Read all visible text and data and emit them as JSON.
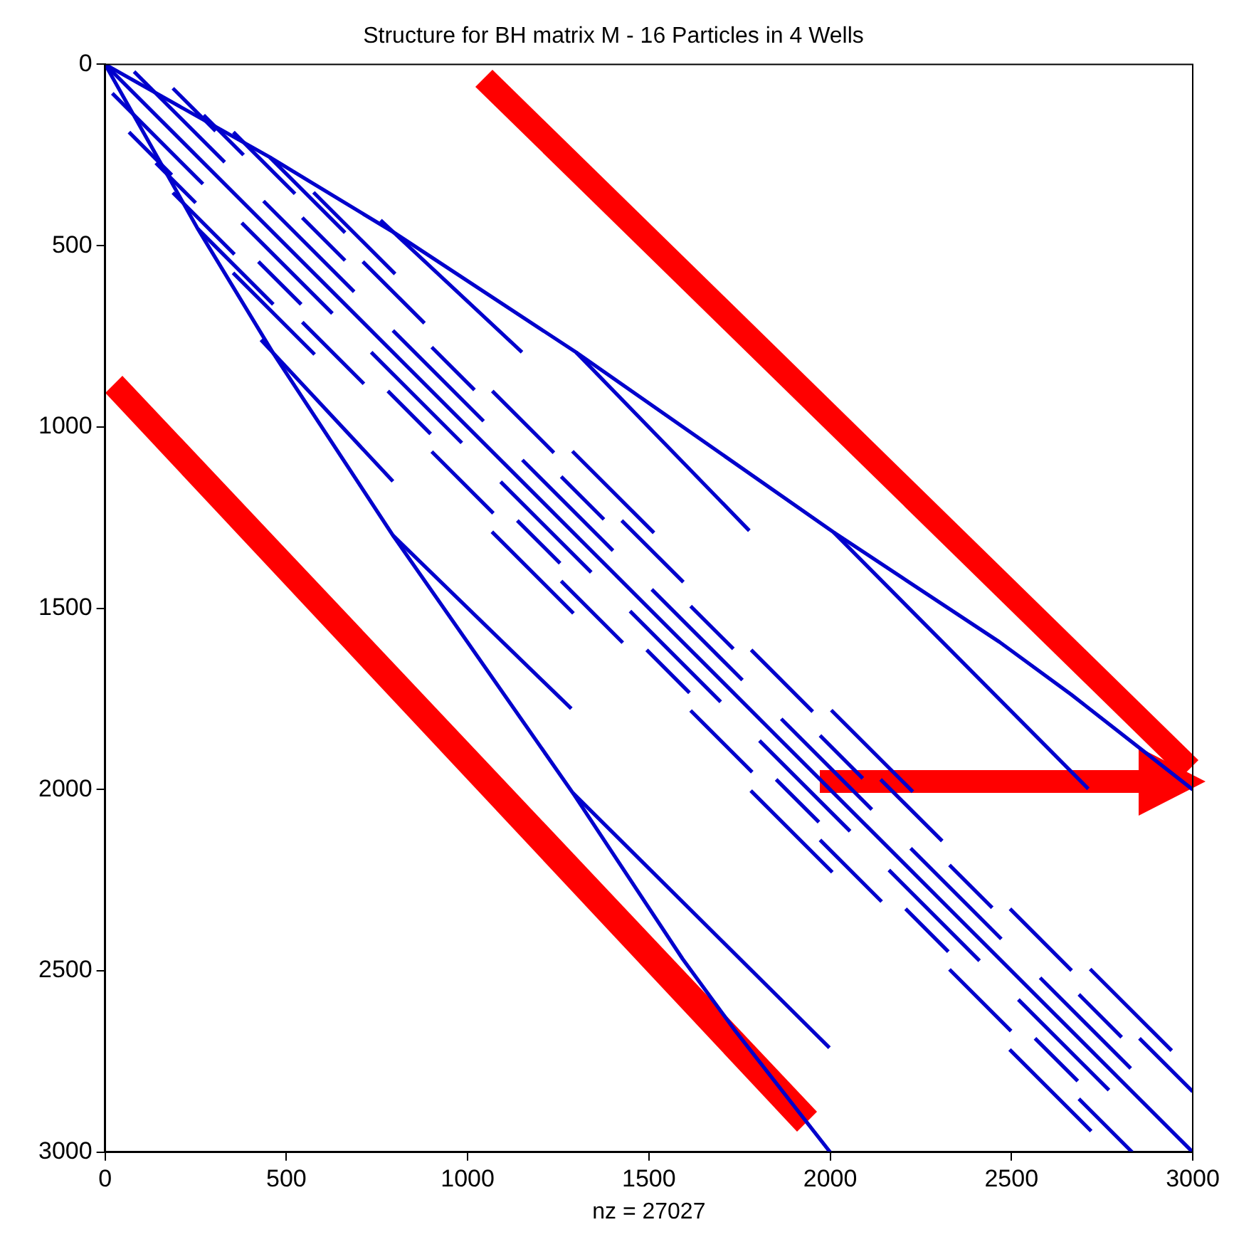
{
  "chart_data": {
    "type": "line",
    "title": "Structure for BH matrix M - 16 Particles in 4 Wells",
    "xlabel": "nz = 27027",
    "xlim": [
      0,
      3000
    ],
    "xticks": [
      0,
      500,
      1000,
      1500,
      2000,
      2500,
      3000
    ],
    "ylim": [
      3000,
      0
    ],
    "yticks": [
      0,
      500,
      1000,
      1500,
      2000,
      2500,
      3000
    ],
    "grid": false,
    "legend": false,
    "marker": "none",
    "line_style": "solid",
    "series": [
      {
        "color": "#0000cc",
        "x": [
          0,
          3000
        ],
        "values": [
          0,
          3000
        ]
      },
      {
        "color": "#0000cc",
        "x": [
          0,
          256,
          464,
          794,
          1290,
          1593,
          1738,
          2000
        ],
        "values": [
          0,
          454,
          797,
          1299,
          2009,
          2467,
          2665,
          3000
        ]
      },
      {
        "color": "#0000cc",
        "x": [
          0,
          454,
          797,
          1299,
          2009,
          2467,
          2665,
          3000
        ],
        "values": [
          0,
          256,
          464,
          794,
          1290,
          1593,
          1738,
          2000
        ]
      },
      {
        "color": "#0000cc",
        "x": [
          140,
          250,
          null,
          256,
          464,
          null,
          430,
          794,
          null,
          794,
          1286,
          null,
          1290,
          1998
        ],
        "values": [
          272,
          382,
          null,
          454,
          662,
          null,
          760,
          1150,
          null,
          1299,
          1777,
          null,
          2009,
          2712
        ]
      },
      {
        "color": "#0000cc",
        "x": [
          272,
          382,
          null,
          454,
          662,
          null,
          760,
          1150,
          null,
          1299,
          1777,
          null,
          2009,
          2712
        ],
        "values": [
          140,
          250,
          null,
          256,
          464,
          null,
          430,
          794,
          null,
          794,
          1286,
          null,
          1290,
          1998
        ]
      },
      {
        "color": "#0000cc",
        "x": [
          354,
          524,
          null,
          711,
          881,
          null,
          1068,
          1238,
          null,
          1425,
          1595,
          null,
          1782,
          1952,
          null,
          2139,
          2309,
          null,
          2496,
          2666,
          null,
          2853,
          3000
        ],
        "values": [
          187,
          357,
          null,
          544,
          714,
          null,
          901,
          1071,
          null,
          1258,
          1428,
          null,
          1615,
          1785,
          null,
          1972,
          2142,
          null,
          2329,
          2499,
          null,
          2686,
          2833
        ]
      },
      {
        "color": "#0000cc",
        "x": [
          187,
          357,
          null,
          544,
          714,
          null,
          901,
          1071,
          null,
          1258,
          1428,
          null,
          1615,
          1785,
          null,
          1972,
          2142,
          null,
          2329,
          2499,
          null,
          2686,
          2833
        ],
        "values": [
          354,
          524,
          null,
          711,
          881,
          null,
          1068,
          1238,
          null,
          1425,
          1595,
          null,
          1782,
          1952,
          null,
          2139,
          2309,
          null,
          2496,
          2666,
          null,
          2853,
          3000
        ]
      },
      {
        "color": "#0000cc",
        "x": [
          575,
          800,
          null,
          1289,
          1514,
          null,
          2003,
          2228,
          null,
          2717,
          2942
        ],
        "values": [
          353,
          578,
          null,
          1067,
          1292,
          null,
          1781,
          2006,
          null,
          2495,
          2720
        ]
      },
      {
        "color": "#0000cc",
        "x": [
          353,
          578,
          null,
          1067,
          1292,
          null,
          1781,
          2006,
          null,
          2495,
          2720
        ],
        "values": [
          575,
          800,
          null,
          1289,
          1514,
          null,
          2003,
          2228,
          null,
          2717,
          2942
        ]
      },
      {
        "color": "#0000cc",
        "x": [
          66,
          184,
          null,
          423,
          541,
          null,
          780,
          898,
          null,
          1137,
          1255,
          null,
          1494,
          1612,
          null,
          1851,
          1969,
          null,
          2208,
          2326,
          null,
          2565,
          2683
        ],
        "values": [
          187,
          305,
          null,
          544,
          662,
          null,
          901,
          1019,
          null,
          1258,
          1376,
          null,
          1615,
          1733,
          null,
          1972,
          2090,
          null,
          2329,
          2447,
          null,
          2686,
          2804
        ]
      },
      {
        "color": "#0000cc",
        "x": [
          187,
          305,
          null,
          544,
          662,
          null,
          901,
          1019,
          null,
          1258,
          1376,
          null,
          1615,
          1733,
          null,
          1972,
          2090,
          null,
          2329,
          2447,
          null,
          2686,
          2804
        ],
        "values": [
          66,
          184,
          null,
          423,
          541,
          null,
          780,
          898,
          null,
          1137,
          1255,
          null,
          1494,
          1612,
          null,
          1851,
          1969,
          null,
          2208,
          2326,
          null,
          2565,
          2683
        ]
      },
      {
        "color": "#0000cc",
        "x": [
          80,
          330,
          null,
          437,
          687,
          null,
          794,
          1044,
          null,
          1151,
          1401,
          null,
          1508,
          1758,
          null,
          1865,
          2115,
          null,
          2222,
          2472,
          null,
          2579,
          2829
        ],
        "values": [
          20,
          270,
          null,
          377,
          627,
          null,
          734,
          984,
          null,
          1091,
          1341,
          null,
          1448,
          1698,
          null,
          1805,
          2055,
          null,
          2162,
          2412,
          null,
          2519,
          2769
        ]
      },
      {
        "color": "#0000cc",
        "x": [
          20,
          270,
          null,
          377,
          627,
          null,
          734,
          984,
          null,
          1091,
          1341,
          null,
          1448,
          1698,
          null,
          1805,
          2055,
          null,
          2162,
          2412,
          null,
          2519,
          2769
        ],
        "values": [
          80,
          330,
          null,
          437,
          687,
          null,
          794,
          1044,
          null,
          1151,
          1401,
          null,
          1508,
          1758,
          null,
          1865,
          2115,
          null,
          2222,
          2472,
          null,
          2579,
          2829
        ]
      }
    ]
  }
}
